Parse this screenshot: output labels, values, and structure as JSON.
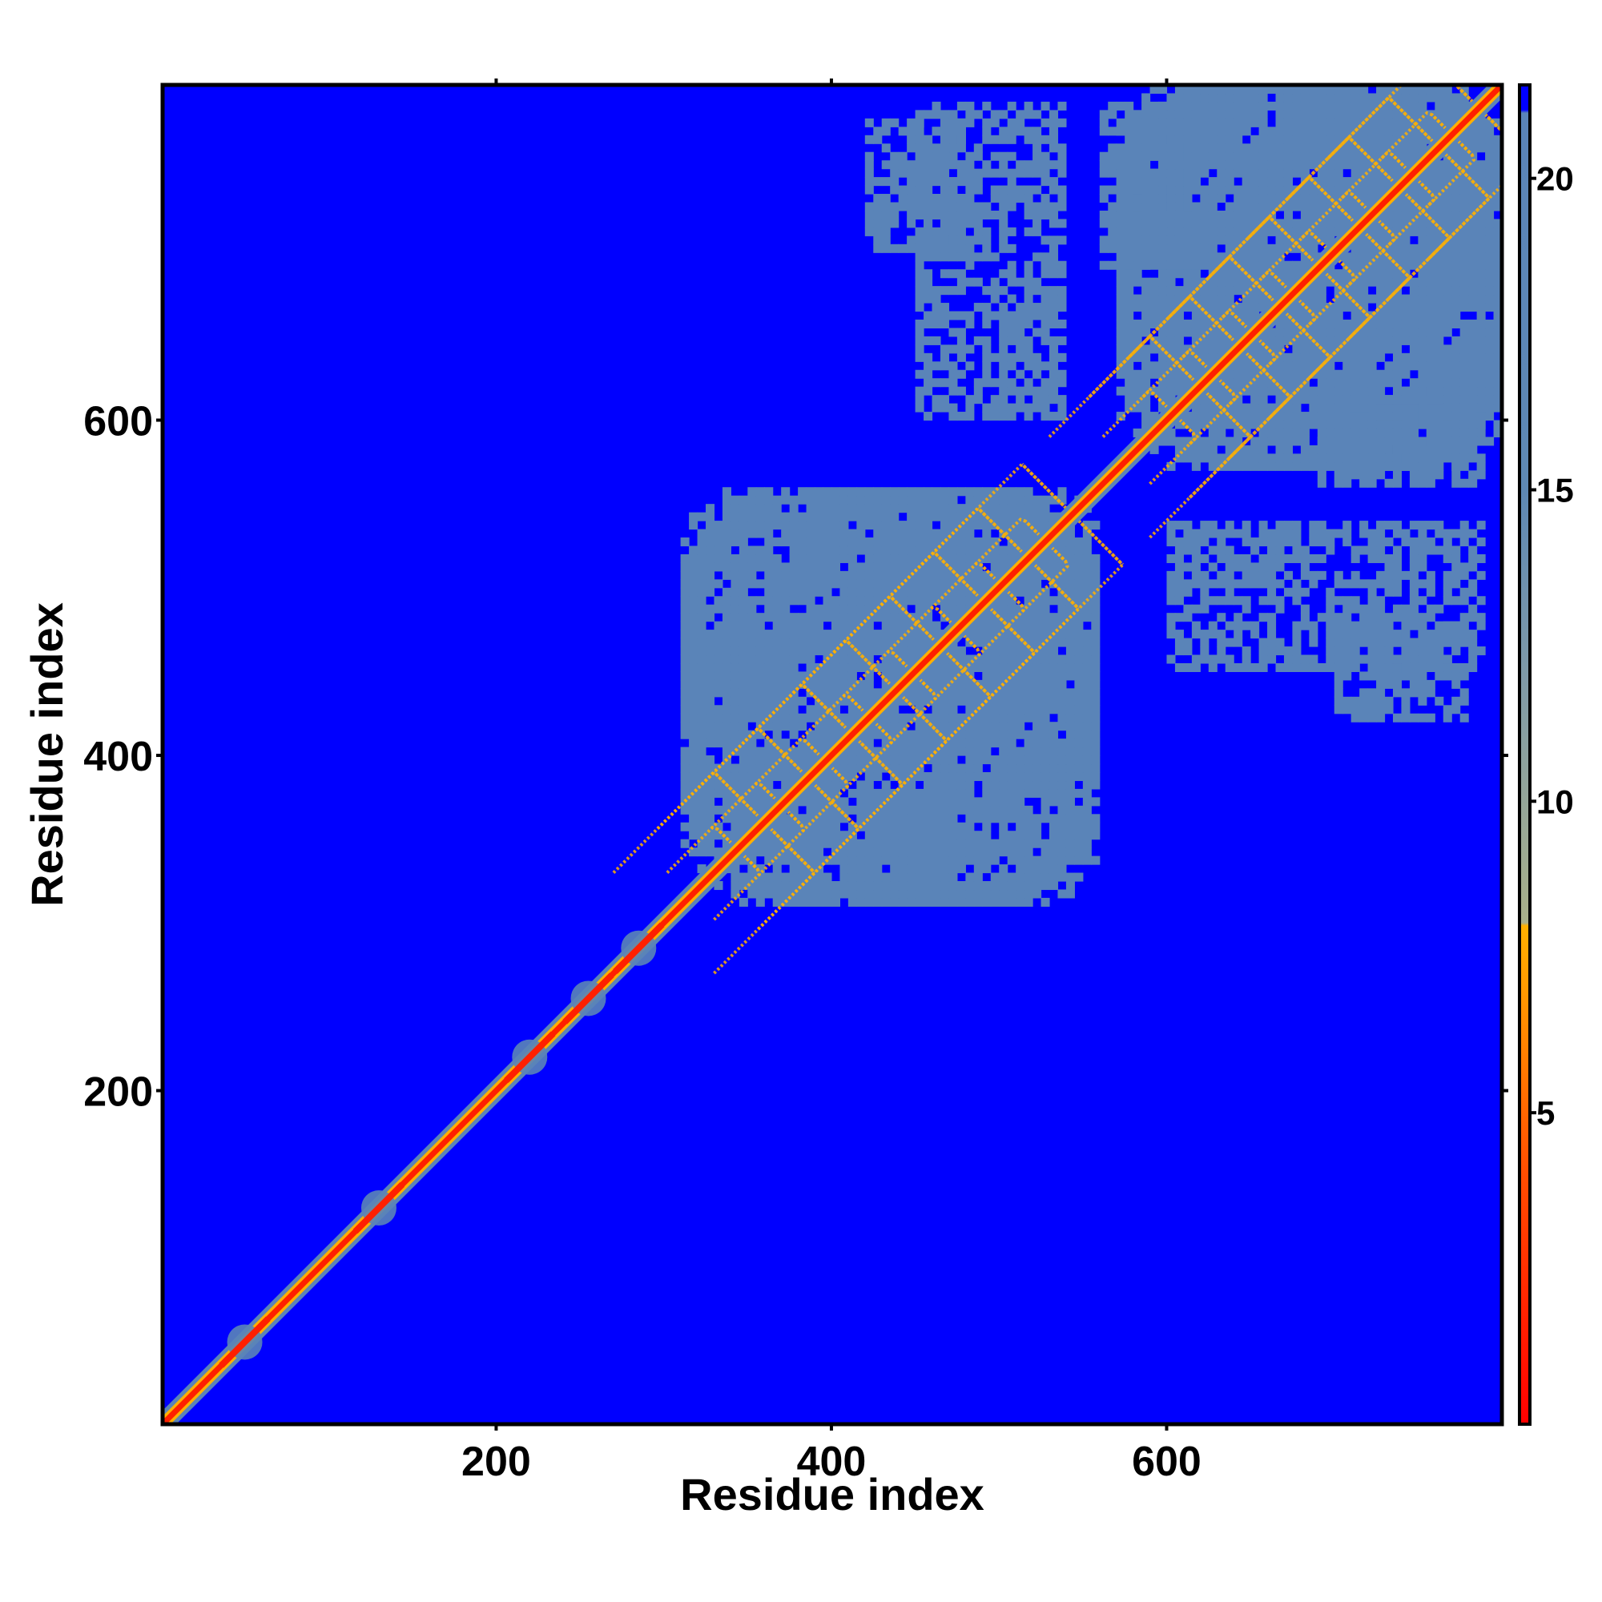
{
  "chart_data": {
    "type": "heatmap",
    "title": "",
    "xlabel": "Residue index",
    "ylabel": "Residue index",
    "xlim": [
      1,
      800
    ],
    "ylim": [
      1,
      800
    ],
    "x_ticks": [
      200,
      400,
      600
    ],
    "y_ticks": [
      200,
      400,
      600
    ],
    "colorbar": {
      "ticks": [
        5,
        10,
        15,
        20
      ],
      "range": [
        0,
        21.5
      ],
      "stops": [
        {
          "value": 0,
          "color": "#ff0000"
        },
        {
          "value": 4,
          "color": "#ff4d00"
        },
        {
          "value": 7,
          "color": "#ff9a00"
        },
        {
          "value": 8,
          "color": "#ffb000"
        },
        {
          "value": 8.05,
          "color": "#a9b08a"
        },
        {
          "value": 12,
          "color": "#7f9aa8"
        },
        {
          "value": 15,
          "color": "#5e88b4"
        },
        {
          "value": 21.05,
          "color": "#5a84b8"
        },
        {
          "value": 21.1,
          "color": "#0000ff"
        },
        {
          "value": 21.5,
          "color": "#0000ff"
        }
      ]
    },
    "domains": [
      {
        "start": 310,
        "end": 560
      },
      {
        "start": 570,
        "end": 800
      }
    ],
    "colors": {
      "background": "#0000ff",
      "contact_region": "#5a84b8",
      "diagonal": "#ff2000",
      "sheet_pattern": "#ffb000"
    }
  }
}
